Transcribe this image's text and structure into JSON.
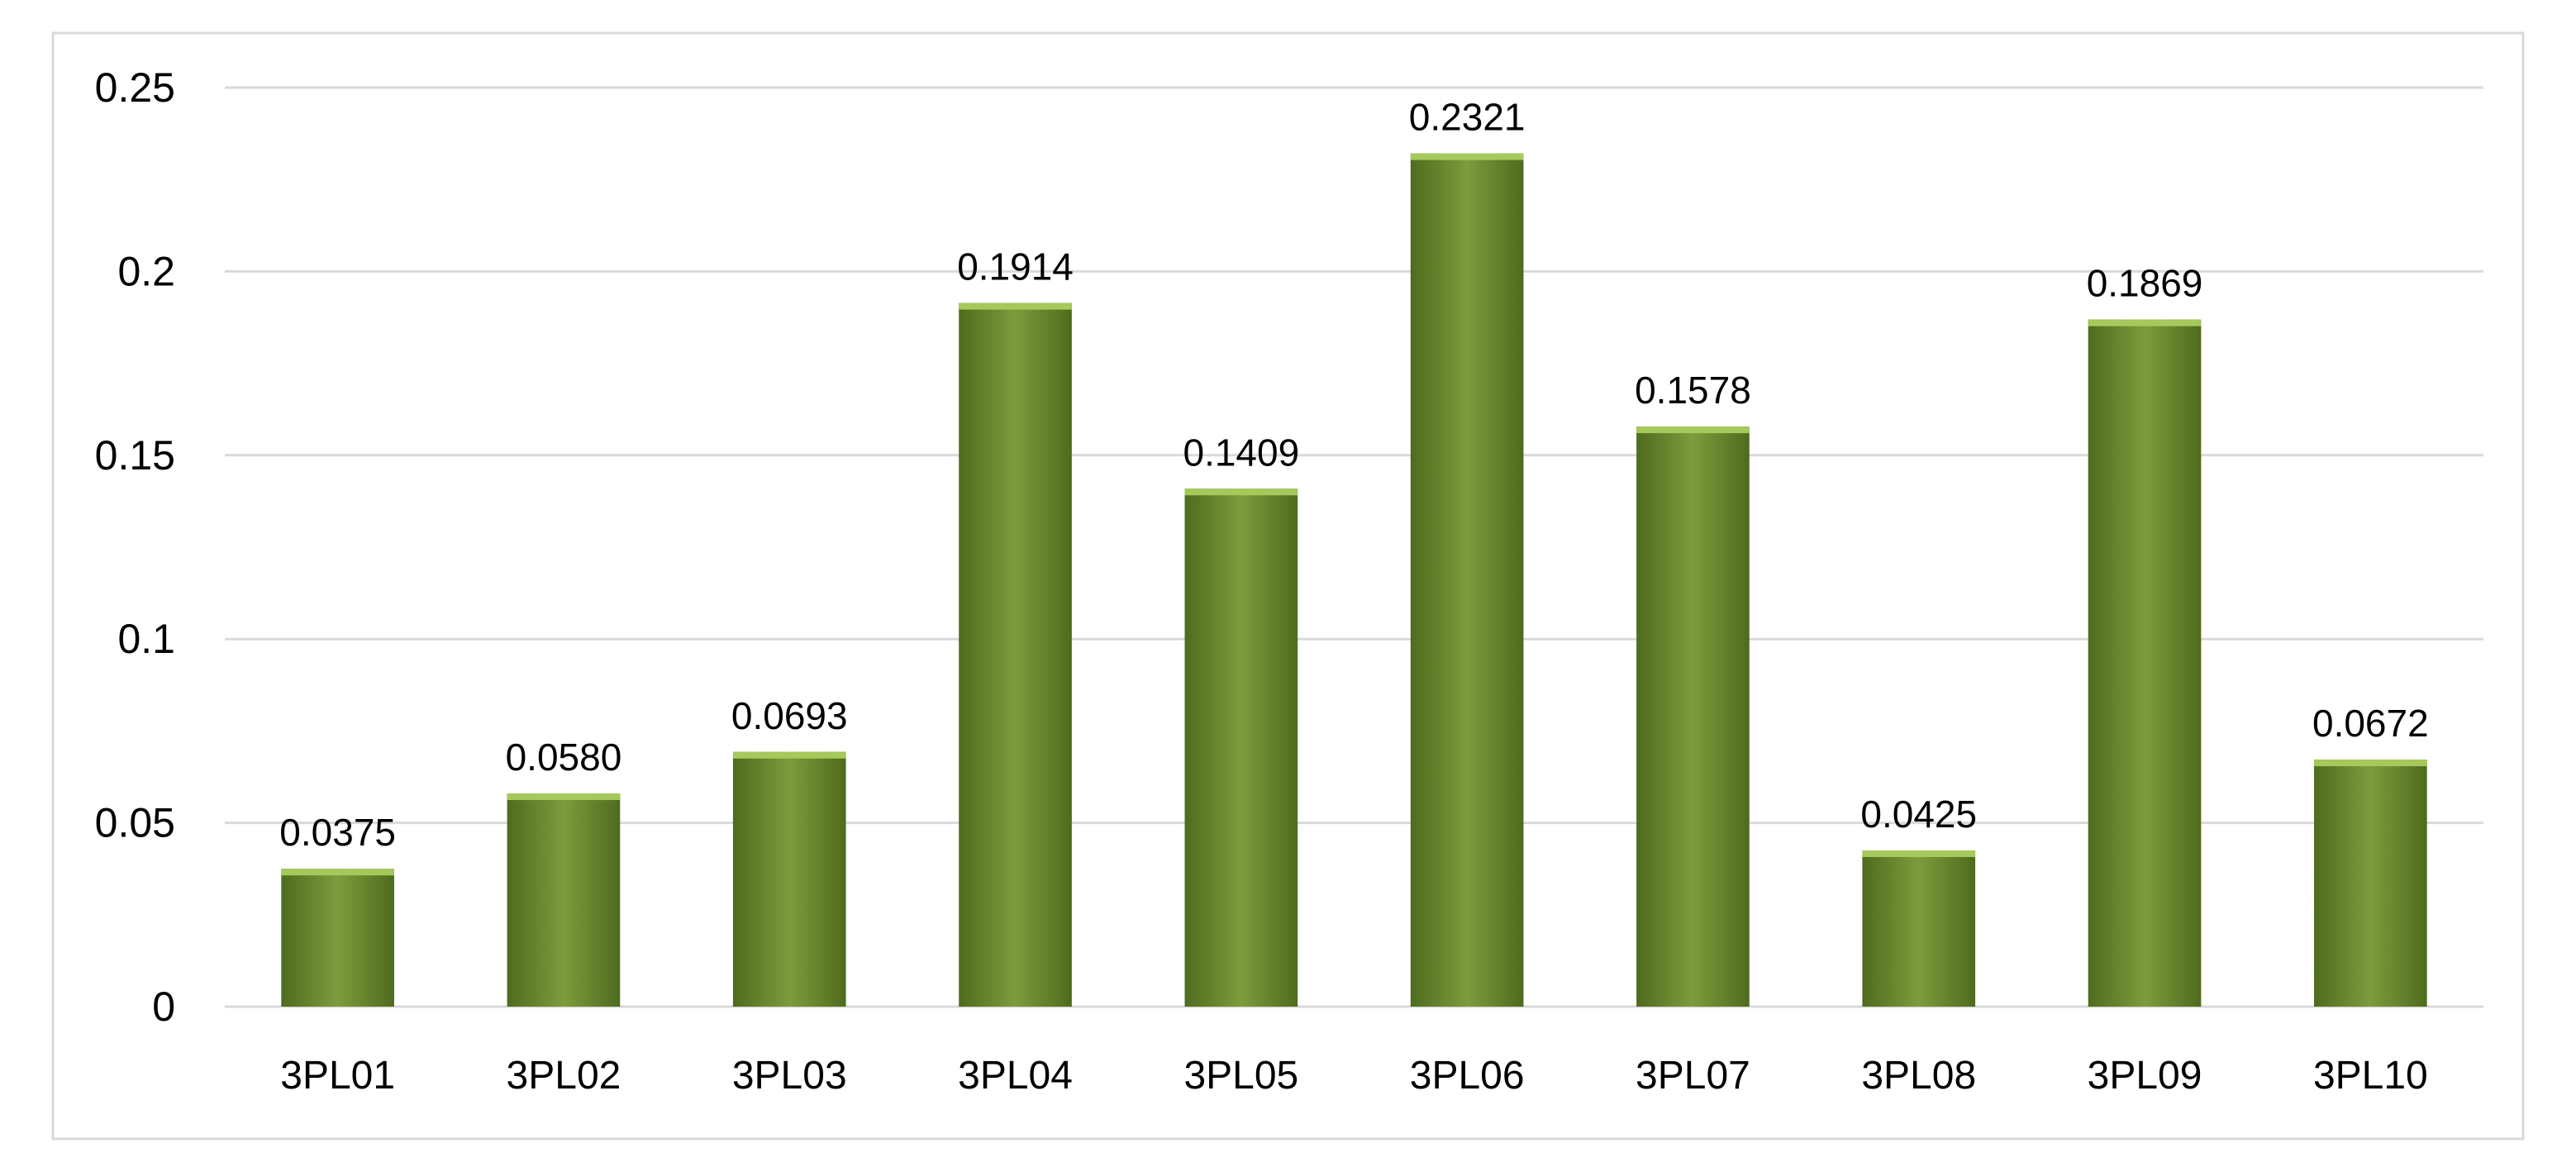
{
  "chart_data": {
    "type": "bar",
    "categories": [
      "3PL01",
      "3PL02",
      "3PL03",
      "3PL04",
      "3PL05",
      "3PL06",
      "3PL07",
      "3PL08",
      "3PL09",
      "3PL10"
    ],
    "values": [
      0.0375,
      0.058,
      0.0693,
      0.1914,
      0.1409,
      0.2321,
      0.1578,
      0.0425,
      0.1869,
      0.0672
    ],
    "data_labels": [
      "0.0375",
      "0.0580",
      "0.0693",
      "0.1914",
      "0.1409",
      "0.2321",
      "0.1578",
      "0.0425",
      "0.1869",
      "0.0672"
    ],
    "y_ticks": [
      0,
      0.05,
      0.1,
      0.15,
      0.2,
      0.25
    ],
    "y_tick_labels": [
      "0",
      "0.05",
      "0.1",
      "0.15",
      "0.2",
      "0.25"
    ],
    "ylim": [
      0,
      0.25
    ],
    "grid": true,
    "legend": "none",
    "colors": {
      "bar_top": "#a5c95a",
      "bar_mid": "#7c9c3c",
      "bar_dark": "#4f6b1e",
      "grid": "#d9d9d9",
      "border": "#d9d9d9"
    }
  }
}
